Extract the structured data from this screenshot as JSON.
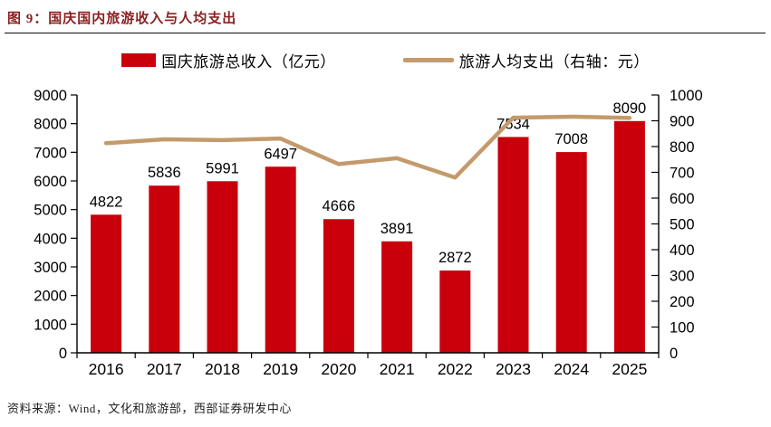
{
  "header": {
    "title": "图 9：国庆国内旅游收入与人均支出"
  },
  "legend": {
    "bar_label": "国庆旅游总收入（亿元）",
    "line_label": "旅游人均支出（右轴：元）"
  },
  "footer": {
    "source": "资料来源：Wind，文化和旅游部，西部证券研发中心"
  },
  "colors": {
    "bar": "#c9000b",
    "line": "#c49a6c",
    "axis": "#000000",
    "title_text": "#8b2020",
    "label_text": "#000000"
  },
  "chart_data": {
    "type": "bar",
    "subtype": "combo-bar-line-dual-axis",
    "title": "国庆国内旅游收入与人均支出",
    "categories": [
      "2016",
      "2017",
      "2018",
      "2019",
      "2020",
      "2021",
      "2022",
      "2023",
      "2024",
      "2025"
    ],
    "series": [
      {
        "name": "国庆旅游总收入（亿元）",
        "type": "bar",
        "axis": "left",
        "color": "#c9000b",
        "values": [
          4822,
          5836,
          5991,
          6497,
          4666,
          3891,
          2872,
          7534,
          7008,
          8090
        ],
        "data_labels": true
      },
      {
        "name": "旅游人均支出（右轴：元）",
        "type": "line",
        "axis": "right",
        "color": "#c49a6c",
        "values": [
          813,
          828,
          825,
          831,
          732,
          755,
          680,
          912,
          916,
          911
        ],
        "data_labels": false
      }
    ],
    "left_axis": {
      "min": 0,
      "max": 9000,
      "step": 1000,
      "ticks": [
        0,
        1000,
        2000,
        3000,
        4000,
        5000,
        6000,
        7000,
        8000,
        9000
      ]
    },
    "right_axis": {
      "min": 0,
      "max": 1000,
      "step": 100,
      "ticks": [
        0,
        100,
        200,
        300,
        400,
        500,
        600,
        700,
        800,
        900,
        1000
      ]
    },
    "grid": false,
    "legend_position": "top"
  }
}
